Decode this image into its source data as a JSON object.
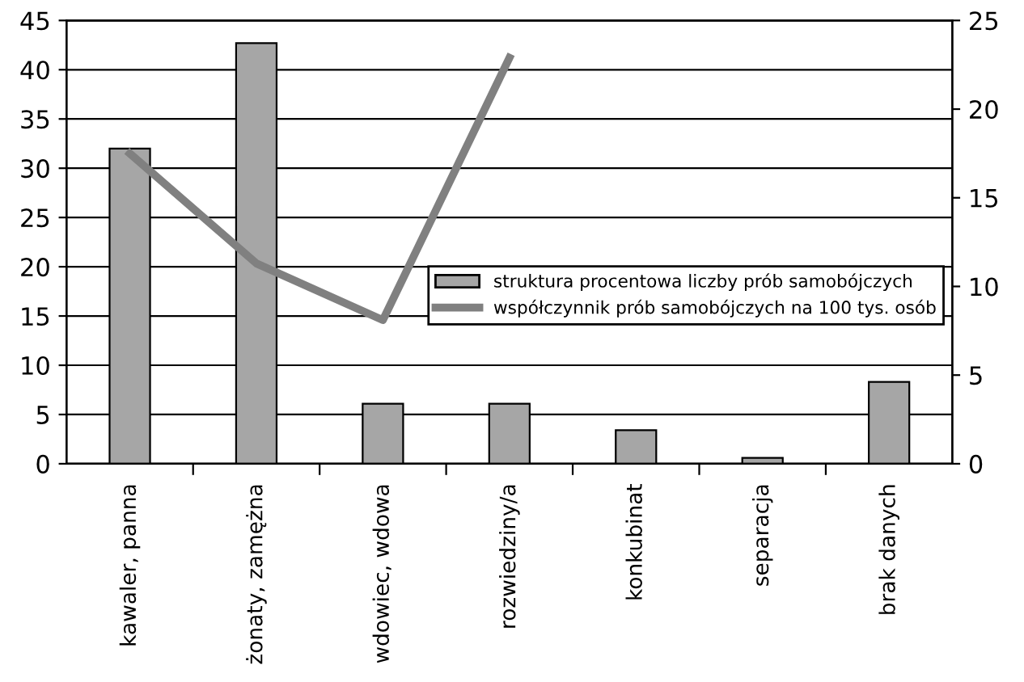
{
  "chart_data": {
    "type": "bar",
    "categories": [
      "kawaler, panna",
      "żonaty, zamężna",
      "wdowiec, wdowa",
      "rozwiedziny/a",
      "konkubinat",
      "separacja",
      "brak danych"
    ],
    "series": [
      {
        "name": "struktura procentowa liczby prób samobójczych",
        "color": "#a6a6a6",
        "values": [
          32,
          42.7,
          6.1,
          6.1,
          3.4,
          0.6,
          8.3
        ]
      },
      {
        "name": "współczynnik prób samobójczych na 100 tys. osób",
        "type": "line",
        "axis": "y2",
        "color": "#808080",
        "values": [
          17.5,
          11.3,
          8.1,
          22.9,
          null,
          null,
          null
        ]
      }
    ],
    "ylim": [
      0,
      45
    ],
    "yticks": [
      0,
      5,
      10,
      15,
      20,
      25,
      30,
      35,
      40,
      45
    ],
    "y2lim": [
      0,
      25
    ],
    "y2ticks": [
      0,
      5,
      10,
      15,
      20,
      25
    ],
    "grid": "y",
    "legend": "right",
    "marker": "none",
    "line_style": "solid"
  }
}
